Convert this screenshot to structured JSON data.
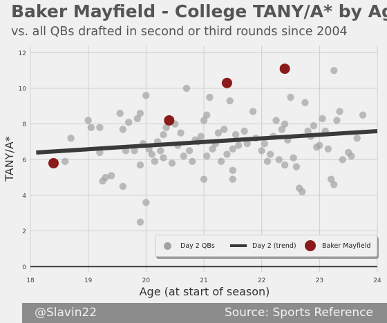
{
  "header": {
    "title": "Baker Mayfield - College TANY/A* by Age",
    "subtitle": "vs. all QBs drafted in second or third rounds since 2004"
  },
  "footer": {
    "left": "@Slavin22",
    "right": "Source: Sports Reference"
  },
  "legend": {
    "day2_qbs": "Day 2 QBs",
    "day2_trend": "Day 2 (trend)",
    "baker": "Baker Mayfield"
  },
  "colors": {
    "background": "#f0f0f0",
    "day2_points": "#a3a3a3",
    "trend_line": "#3a3a3a",
    "baker": "#8b1a1a",
    "grid": "#cfcfcf",
    "baseline": "#3a3a3a"
  },
  "chart_data": {
    "type": "scatter",
    "xlabel": "Age (at start of season)",
    "ylabel": "TANY/A*",
    "xlim": [
      18,
      24
    ],
    "ylim": [
      -0.3,
      12.4
    ],
    "xticks": [
      "18",
      "19",
      "20",
      "21",
      "22",
      "23",
      "24"
    ],
    "yticks": [
      "0",
      "2",
      "4",
      "6",
      "8",
      "10",
      "12"
    ],
    "grid": true,
    "legend_position": "bottom-right",
    "series": [
      {
        "name": "Day 2 QBs",
        "kind": "scatter",
        "points": [
          [
            18.6,
            5.9
          ],
          [
            18.7,
            7.2
          ],
          [
            19.0,
            8.2
          ],
          [
            19.05,
            7.8
          ],
          [
            19.2,
            6.4
          ],
          [
            19.2,
            7.8
          ],
          [
            19.25,
            4.8
          ],
          [
            19.3,
            5.0
          ],
          [
            19.4,
            5.1
          ],
          [
            19.55,
            8.6
          ],
          [
            19.6,
            4.5
          ],
          [
            19.6,
            7.7
          ],
          [
            19.65,
            6.5
          ],
          [
            19.7,
            8.1
          ],
          [
            19.8,
            6.5
          ],
          [
            19.85,
            8.3
          ],
          [
            19.9,
            8.6
          ],
          [
            19.9,
            5.7
          ],
          [
            19.9,
            2.5
          ],
          [
            19.95,
            6.9
          ],
          [
            20.0,
            9.6
          ],
          [
            20.0,
            3.6
          ],
          [
            20.05,
            6.6
          ],
          [
            20.1,
            6.3
          ],
          [
            20.15,
            5.9
          ],
          [
            20.2,
            7.0
          ],
          [
            20.25,
            6.5
          ],
          [
            20.3,
            7.4
          ],
          [
            20.3,
            6.1
          ],
          [
            20.35,
            7.8
          ],
          [
            20.45,
            5.8
          ],
          [
            20.5,
            8.0
          ],
          [
            20.55,
            6.8
          ],
          [
            20.6,
            7.5
          ],
          [
            20.65,
            6.2
          ],
          [
            20.7,
            10.0
          ],
          [
            20.75,
            6.5
          ],
          [
            20.8,
            5.9
          ],
          [
            20.85,
            7.1
          ],
          [
            20.9,
            7.0
          ],
          [
            20.95,
            7.3
          ],
          [
            21.0,
            8.2
          ],
          [
            21.0,
            4.9
          ],
          [
            21.05,
            8.5
          ],
          [
            21.05,
            6.2
          ],
          [
            21.1,
            9.5
          ],
          [
            21.15,
            6.6
          ],
          [
            21.2,
            6.9
          ],
          [
            21.25,
            7.5
          ],
          [
            21.3,
            5.9
          ],
          [
            21.35,
            7.7
          ],
          [
            21.4,
            6.3
          ],
          [
            21.45,
            9.3
          ],
          [
            21.5,
            6.6
          ],
          [
            21.5,
            5.4
          ],
          [
            21.5,
            4.9
          ],
          [
            21.55,
            7.4
          ],
          [
            21.6,
            6.8
          ],
          [
            21.7,
            7.6
          ],
          [
            21.75,
            6.9
          ],
          [
            21.85,
            8.7
          ],
          [
            21.9,
            7.2
          ],
          [
            22.0,
            6.5
          ],
          [
            22.05,
            6.9
          ],
          [
            22.1,
            5.9
          ],
          [
            22.15,
            6.3
          ],
          [
            22.2,
            7.3
          ],
          [
            22.25,
            8.2
          ],
          [
            22.3,
            6.0
          ],
          [
            22.35,
            7.7
          ],
          [
            22.4,
            5.7
          ],
          [
            22.4,
            8.0
          ],
          [
            22.45,
            7.1
          ],
          [
            22.5,
            9.5
          ],
          [
            22.55,
            6.1
          ],
          [
            22.6,
            5.6
          ],
          [
            22.65,
            4.4
          ],
          [
            22.7,
            4.2
          ],
          [
            22.75,
            9.2
          ],
          [
            22.8,
            7.6
          ],
          [
            22.85,
            7.3
          ],
          [
            22.9,
            7.9
          ],
          [
            22.95,
            6.7
          ],
          [
            23.0,
            6.8
          ],
          [
            23.05,
            8.3
          ],
          [
            23.1,
            7.6
          ],
          [
            23.15,
            6.6
          ],
          [
            23.2,
            4.9
          ],
          [
            23.25,
            4.6
          ],
          [
            23.25,
            11.0
          ],
          [
            23.3,
            8.2
          ],
          [
            23.35,
            8.7
          ],
          [
            23.4,
            6.0
          ],
          [
            23.5,
            6.4
          ],
          [
            23.55,
            6.2
          ],
          [
            23.65,
            7.2
          ],
          [
            23.75,
            8.5
          ]
        ]
      },
      {
        "name": "Day 2 (trend)",
        "kind": "line",
        "points": [
          [
            18.1,
            6.4
          ],
          [
            24.0,
            7.6
          ]
        ]
      },
      {
        "name": "Baker Mayfield",
        "kind": "scatter",
        "points": [
          [
            18.4,
            5.8
          ],
          [
            20.4,
            8.2
          ],
          [
            21.4,
            10.3
          ],
          [
            22.4,
            11.1
          ]
        ]
      }
    ]
  }
}
